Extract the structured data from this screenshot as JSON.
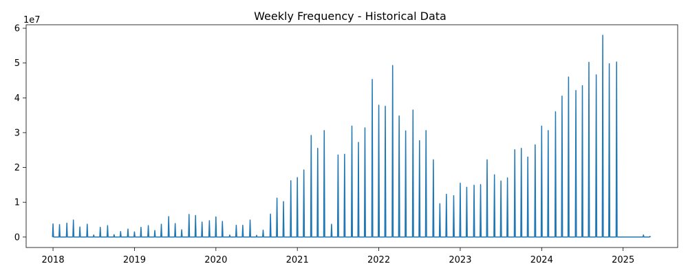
{
  "chart_data": {
    "type": "line",
    "title": "Weekly Frequency - Historical Data",
    "xlabel": "",
    "ylabel": "",
    "y_offset_label": "1e7",
    "y_multiplier": 10000000,
    "xlim": [
      2017.67,
      2025.67
    ],
    "ylim": [
      -0.3,
      6.1
    ],
    "x_ticks": [
      2018,
      2019,
      2020,
      2021,
      2022,
      2023,
      2024,
      2025
    ],
    "x_tick_labels": [
      "2018",
      "2019",
      "2020",
      "2021",
      "2022",
      "2023",
      "2024",
      "2025"
    ],
    "y_ticks": [
      0,
      1,
      2,
      3,
      4,
      5,
      6
    ],
    "y_tick_labels": [
      "0",
      "1",
      "2",
      "3",
      "4",
      "5",
      "6"
    ],
    "grid": false,
    "legend": "none",
    "color": "#1f77b4",
    "series": [
      {
        "peaks_x": [
          2018.0,
          2018.08,
          2018.17,
          2018.25,
          2018.33,
          2018.42,
          2018.5,
          2018.58,
          2018.67,
          2018.75,
          2018.83,
          2018.92,
          2019.0,
          2019.08,
          2019.17,
          2019.25,
          2019.33,
          2019.42,
          2019.5,
          2019.58,
          2019.67,
          2019.75,
          2019.83,
          2019.92,
          2020.0,
          2020.08,
          2020.17,
          2020.25,
          2020.33,
          2020.42,
          2020.5,
          2020.58,
          2020.67,
          2020.75,
          2020.83,
          2020.92,
          2021.0,
          2021.08,
          2021.17,
          2021.25,
          2021.33,
          2021.42,
          2021.5,
          2021.58,
          2021.67,
          2021.75,
          2021.83,
          2021.92,
          2022.0,
          2022.08,
          2022.17,
          2022.25,
          2022.33,
          2022.42,
          2022.5,
          2022.58,
          2022.67,
          2022.75,
          2022.83,
          2022.92,
          2023.0,
          2023.08,
          2023.17,
          2023.25,
          2023.33,
          2023.42,
          2023.5,
          2023.58,
          2023.67,
          2023.75,
          2023.83,
          2023.92,
          2024.0,
          2024.08,
          2024.17,
          2024.25,
          2024.33,
          2024.42,
          2024.5,
          2024.58,
          2024.67,
          2024.75,
          2024.83,
          2024.92,
          2025.0,
          2025.08,
          2025.17,
          2025.25,
          2025.33
        ],
        "peaks_y": [
          0.38,
          0.36,
          0.4,
          0.49,
          0.29,
          0.37,
          0.06,
          0.28,
          0.33,
          0.07,
          0.16,
          0.23,
          0.15,
          0.28,
          0.33,
          0.19,
          0.37,
          0.59,
          0.39,
          0.21,
          0.65,
          0.62,
          0.43,
          0.47,
          0.58,
          0.45,
          0.06,
          0.34,
          0.34,
          0.49,
          0.05,
          0.2,
          0.66,
          1.12,
          1.02,
          1.62,
          1.71,
          1.93,
          2.92,
          2.55,
          3.06,
          0.37,
          2.36,
          2.38,
          3.19,
          2.72,
          3.14,
          4.53,
          3.79,
          3.76,
          4.93,
          3.48,
          3.05,
          3.65,
          2.77,
          3.06,
          2.22,
          0.96,
          1.23,
          1.19,
          1.55,
          1.43,
          1.49,
          1.51,
          2.22,
          1.79,
          1.61,
          1.7,
          2.51,
          2.55,
          2.3,
          2.65,
          3.19,
          3.06,
          3.6,
          4.05,
          4.6,
          4.21,
          4.35,
          5.02,
          4.66,
          5.8,
          4.98,
          5.03,
          0.0,
          0.0,
          0.0,
          0.06,
          0.02
        ]
      }
    ]
  }
}
